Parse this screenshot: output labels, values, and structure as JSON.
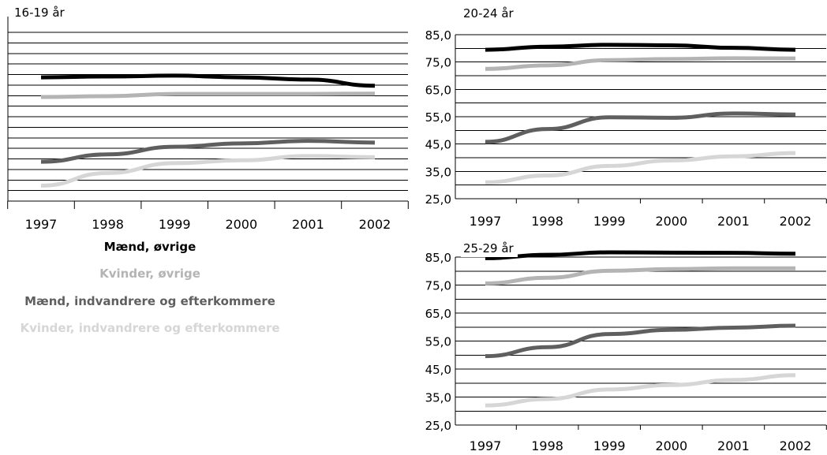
{
  "colors": {
    "maend_ovrige": "#000000",
    "kvinder_ovrige": "#b4b4b4",
    "maend_indv": "#5f5f5f",
    "kvinder_indv": "#d6d6d6",
    "grid": "#000000"
  },
  "legend": [
    {
      "label": "Mænd, øvrige",
      "color": "#000000"
    },
    {
      "label": "Kvinder, øvrige",
      "color": "#b4b4b4"
    },
    {
      "label": "Mænd, indvandrere og efterkommere",
      "color": "#5f5f5f"
    },
    {
      "label": "Kvinder, indvandrere og efterkommere",
      "color": "#d6d6d6"
    }
  ],
  "chart_data": [
    {
      "type": "line",
      "title": "16-19 år",
      "categories": [
        "1997",
        "1998",
        "1999",
        "2000",
        "2001",
        "2002"
      ],
      "ylim": [
        25,
        85
      ],
      "y_tick_labels_shown": false,
      "series": [
        {
          "name": "Mænd, øvrige",
          "color": "#000000",
          "values": [
            69.0,
            69.3,
            69.6,
            69.0,
            68.2,
            66.0
          ]
        },
        {
          "name": "Kvinder, øvrige",
          "color": "#b4b4b4",
          "values": [
            62.0,
            62.3,
            63.1,
            63.1,
            63.1,
            63.2
          ]
        },
        {
          "name": "Mænd, indvandrere og efterkommere",
          "color": "#5f5f5f",
          "values": [
            39.0,
            41.6,
            44.3,
            45.5,
            46.4,
            45.8
          ]
        },
        {
          "name": "Kvinder, indvandrere og efterkommere",
          "color": "#d6d6d6",
          "values": [
            30.5,
            35.0,
            38.5,
            39.5,
            41.0,
            40.6
          ]
        }
      ]
    },
    {
      "type": "line",
      "title": "20-24 år",
      "categories": [
        "1997",
        "1998",
        "1999",
        "2000",
        "2001",
        "2002"
      ],
      "ylim": [
        25,
        85
      ],
      "y_ticks": [
        "85,0",
        "75,0",
        "65,0",
        "55,0",
        "45,0",
        "35,0",
        "25,0"
      ],
      "series": [
        {
          "name": "Mænd, øvrige",
          "color": "#000000",
          "values": [
            79.5,
            80.6,
            81.3,
            81.1,
            80.2,
            79.5
          ]
        },
        {
          "name": "Kvinder, øvrige",
          "color": "#b4b4b4",
          "values": [
            72.5,
            73.8,
            75.7,
            76.1,
            76.4,
            76.3
          ]
        },
        {
          "name": "Mænd, indvandrere og efterkommere",
          "color": "#5f5f5f",
          "values": [
            45.8,
            50.5,
            54.8,
            54.6,
            56.2,
            55.8
          ]
        },
        {
          "name": "Kvinder, indvandrere og efterkommere",
          "color": "#d6d6d6",
          "values": [
            31.0,
            33.5,
            37.0,
            39.0,
            40.5,
            41.7
          ]
        }
      ]
    },
    {
      "type": "line",
      "title": "25-29 år",
      "categories": [
        "1997",
        "1998",
        "1999",
        "2000",
        "2001",
        "2002"
      ],
      "ylim": [
        25,
        85
      ],
      "y_ticks": [
        "85,0",
        "75,0",
        "65,0",
        "55,0",
        "45,0",
        "35,0",
        "25,0"
      ],
      "series": [
        {
          "name": "Mænd, øvrige",
          "color": "#000000",
          "values": [
            84.6,
            85.8,
            86.7,
            86.6,
            86.5,
            86.2
          ]
        },
        {
          "name": "Kvinder, øvrige",
          "color": "#b4b4b4",
          "values": [
            75.6,
            77.6,
            80.1,
            80.7,
            81.0,
            81.0
          ]
        },
        {
          "name": "Mænd, indvandrere og efterkommere",
          "color": "#5f5f5f",
          "values": [
            49.6,
            52.8,
            57.5,
            59.0,
            59.8,
            60.5
          ]
        },
        {
          "name": "Kvinder, indvandrere og efterkommere",
          "color": "#d6d6d6",
          "values": [
            32.0,
            34.3,
            37.7,
            39.3,
            41.1,
            42.8
          ]
        }
      ]
    }
  ]
}
